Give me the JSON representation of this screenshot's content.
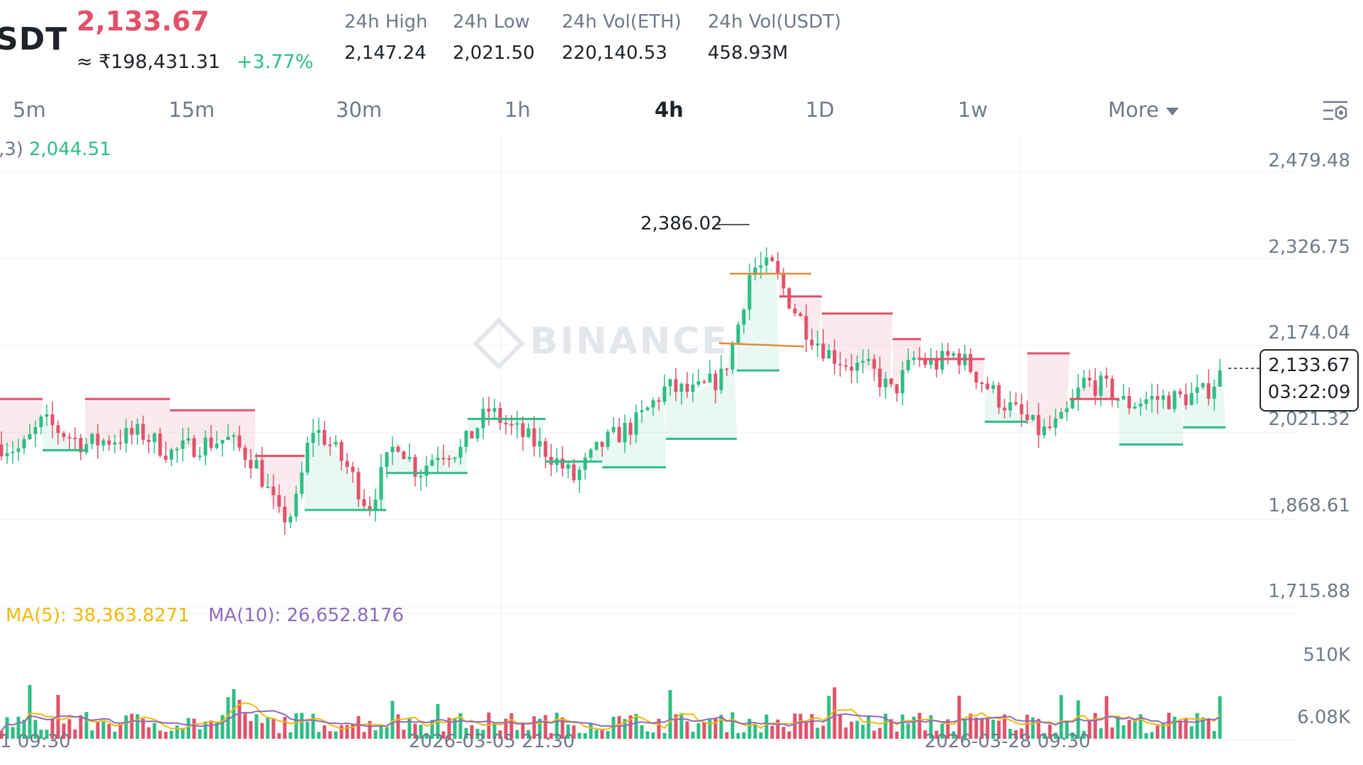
{
  "header": {
    "pair": "SDT",
    "last_price": "2,133.67",
    "approx": "≈ ₹198,431.31",
    "change": "+3.77%",
    "stats": [
      {
        "label": "24h High",
        "value": "2,147.24"
      },
      {
        "label": "24h Low",
        "value": "2,021.50"
      },
      {
        "label": "24h Vol(ETH)",
        "value": "220,140.53"
      },
      {
        "label": "24h Vol(USDT)",
        "value": "458.93M"
      }
    ]
  },
  "tabs": [
    "5m",
    "15m",
    "30m",
    "1h",
    "4h",
    "1D",
    "1w"
  ],
  "active_tab": "4h",
  "more_label": "More",
  "indicator": {
    "label": ",3)",
    "value": "2,044.51"
  },
  "watermark": "BINANCE",
  "price_box": {
    "price": "2,133.67",
    "countdown": "03:22:09"
  },
  "volume_indicators": {
    "ma5": "MA(5): 38,363.8271",
    "ma10": "MA(10): 26,652.8176"
  },
  "colors": {
    "up": "#2ebd85",
    "down": "#e0526a",
    "ma5": "#f0b90b",
    "ma10": "#8e6bbf",
    "accent": "#1e2329"
  },
  "chart_data": {
    "type": "candlestick",
    "title": "",
    "price_axis_ticks": [
      "2,479.48",
      "2,326.75",
      "2,174.04",
      "2,021.32",
      "1,868.61",
      "1,715.88"
    ],
    "volume_axis_ticks": [
      "510K",
      "6.08K"
    ],
    "time_axis_labels": [
      "1 09:30",
      "2026-03-05 21:30",
      "2026-03-28 09:30"
    ],
    "ylim": [
      1715.88,
      2479.48
    ],
    "highest_marker": "2,386.02",
    "last_price": 2133.67,
    "supertrend_value": 2044.51,
    "ma5_value": 38363.8271,
    "ma10_value": 26652.8176,
    "grid": true
  }
}
